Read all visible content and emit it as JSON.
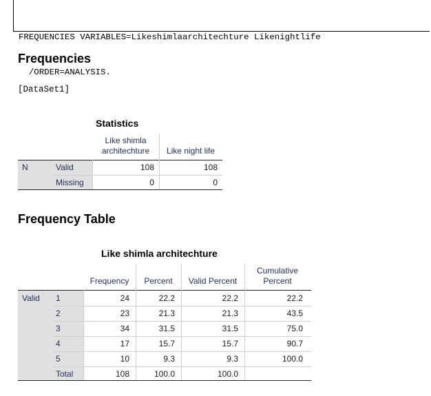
{
  "syntax": {
    "line1": "FREQUENCIES VARIABLES=Likeshimlaarchitechture Likenightlife",
    "line2": "  /ORDER=ANALYSIS."
  },
  "headings": {
    "frequencies": "Frequencies",
    "dataset": "[DataSet1]",
    "frequency_table": "Frequency Table"
  },
  "statistics": {
    "title": "Statistics",
    "columns": [
      "Like shimla\narchitechture",
      "Like night life"
    ],
    "row_group": "N",
    "rows": [
      {
        "label": "Valid",
        "values": [
          "108",
          "108"
        ]
      },
      {
        "label": "Missing",
        "values": [
          "0",
          "0"
        ]
      }
    ]
  },
  "freq_table": {
    "title": "Like shimla architechture",
    "columns": [
      "Frequency",
      "Percent",
      "Valid Percent",
      "Cumulative\nPercent"
    ],
    "row_group": "Valid",
    "rows": [
      {
        "label": "1",
        "values": [
          "24",
          "22.2",
          "22.2",
          "22.2"
        ]
      },
      {
        "label": "2",
        "values": [
          "23",
          "21.3",
          "21.3",
          "43.5"
        ]
      },
      {
        "label": "3",
        "values": [
          "34",
          "31.5",
          "31.5",
          "75.0"
        ]
      },
      {
        "label": "4",
        "values": [
          "17",
          "15.7",
          "15.7",
          "90.7"
        ]
      },
      {
        "label": "5",
        "values": [
          "10",
          "9.3",
          "9.3",
          "100.0"
        ]
      },
      {
        "label": "Total",
        "values": [
          "108",
          "100.0",
          "100.0",
          ""
        ]
      }
    ]
  }
}
